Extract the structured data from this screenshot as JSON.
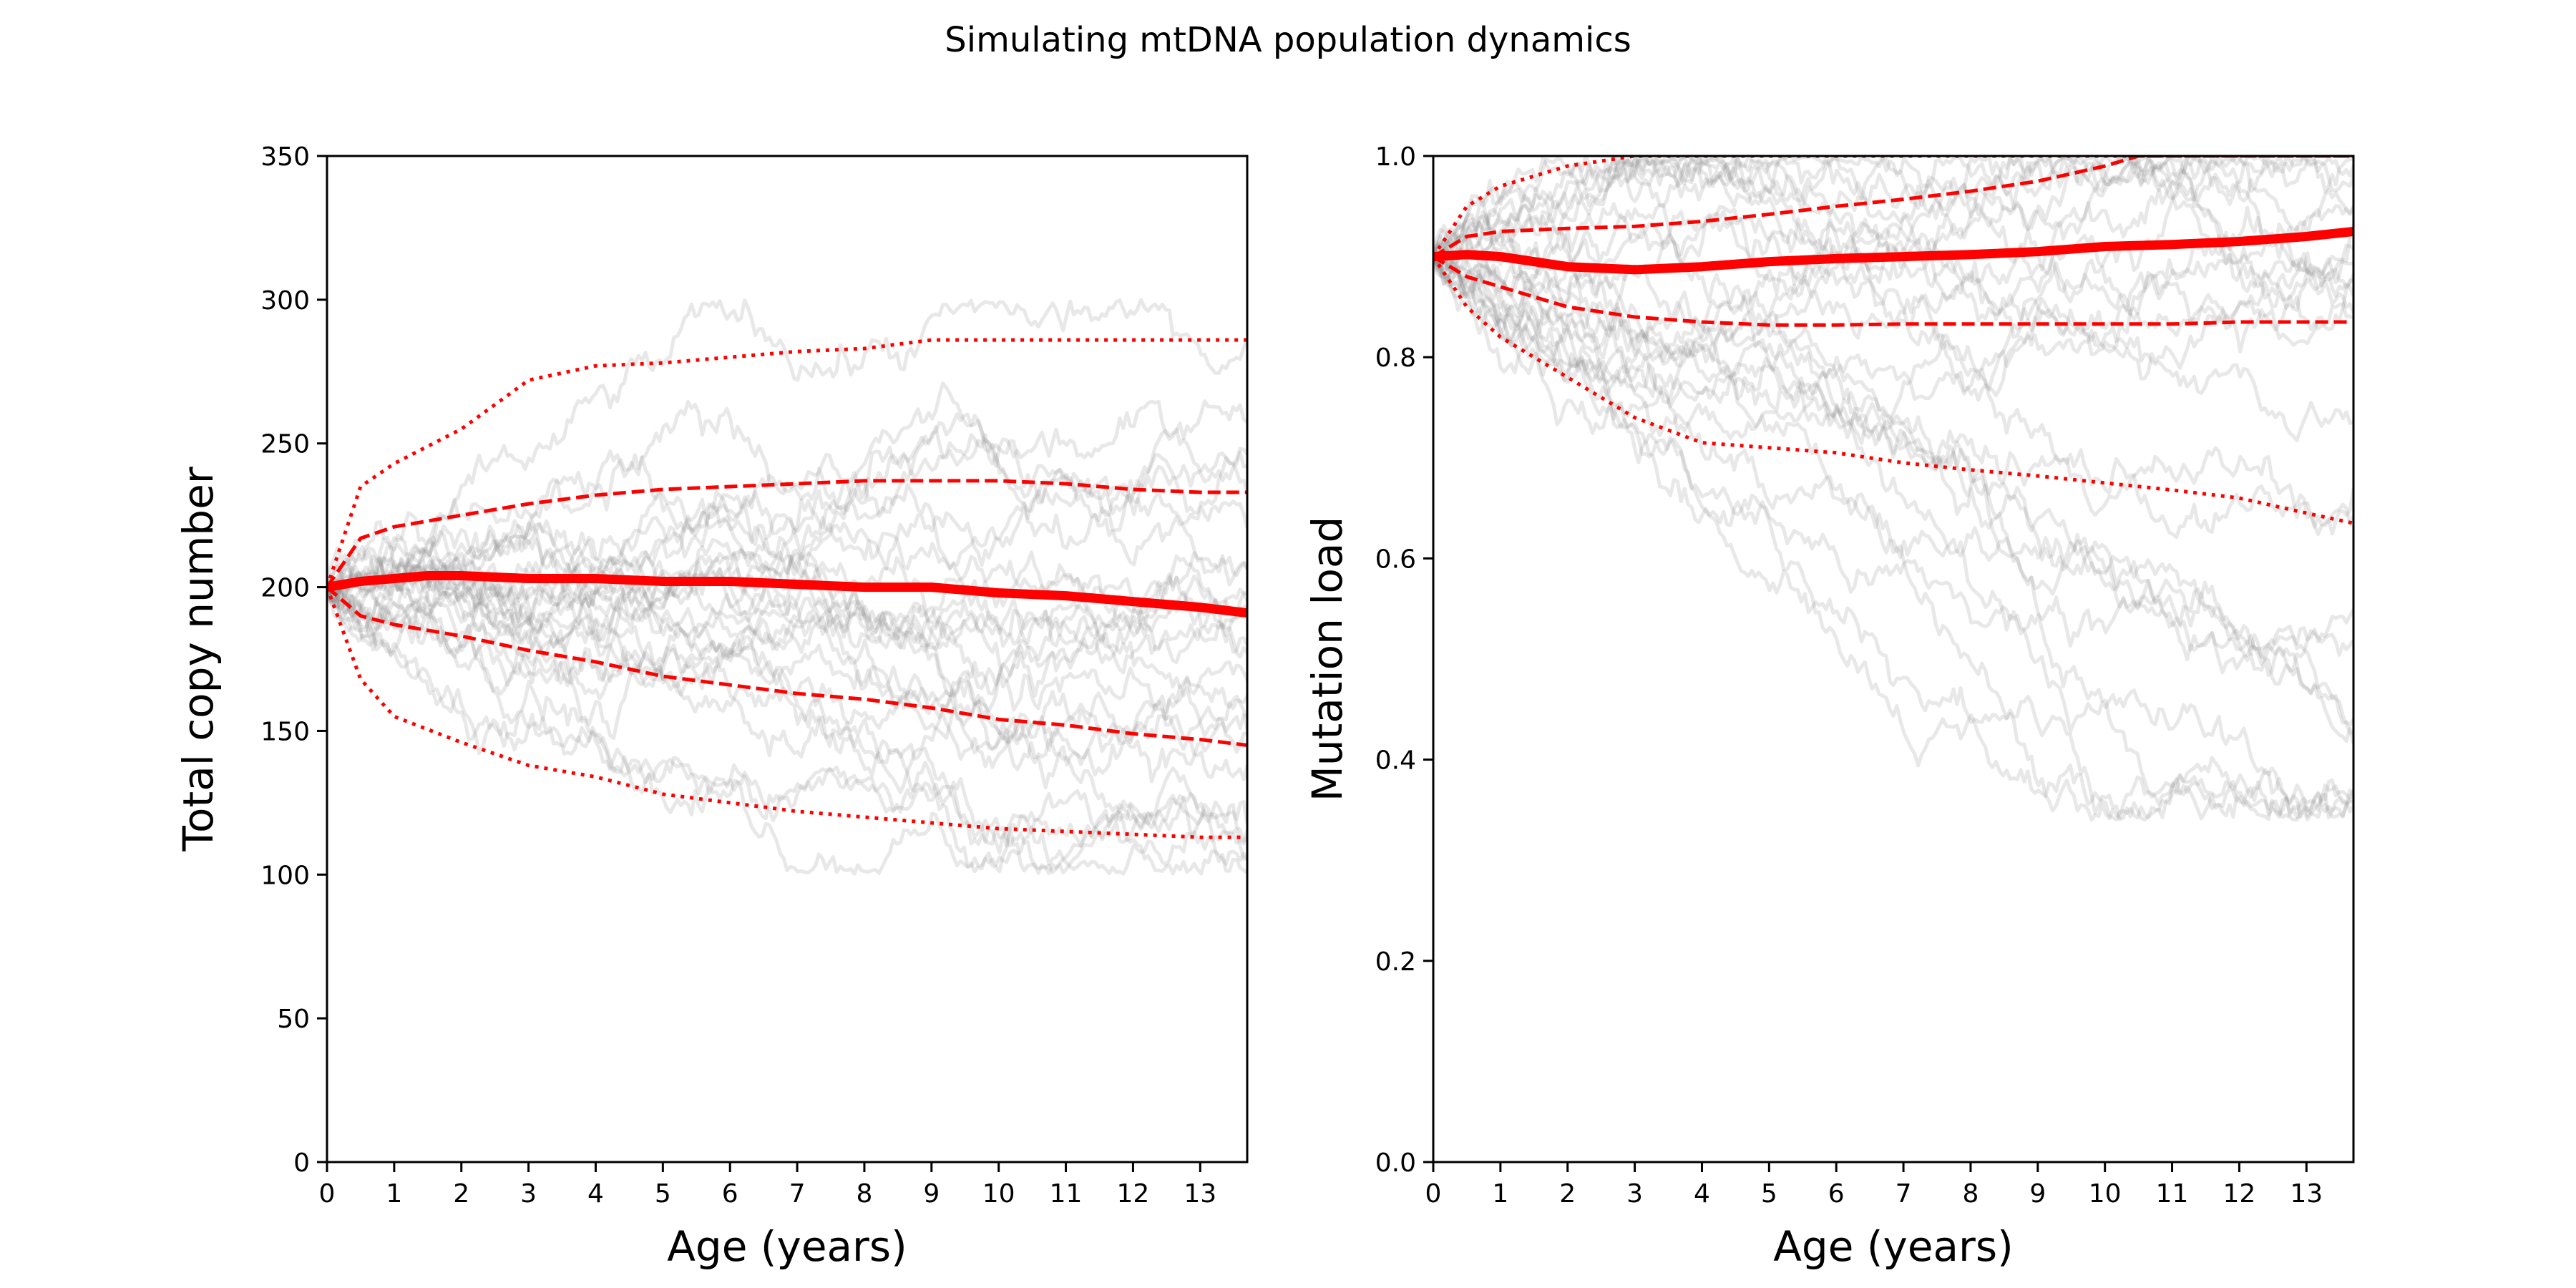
{
  "figure": {
    "title": "Simulating mtDNA population dynamics"
  },
  "colors": {
    "quantile": "#ff0000",
    "trajectory": "#808080",
    "axis": "#000000"
  },
  "chart_data": [
    {
      "type": "line",
      "xlabel": "Age (years)",
      "ylabel": "Total copy number",
      "xlim": [
        0,
        13.7
      ],
      "ylim": [
        0,
        350
      ],
      "xticks": [
        0,
        1,
        2,
        3,
        4,
        5,
        6,
        7,
        8,
        9,
        10,
        11,
        12,
        13
      ],
      "yticks": [
        0,
        50,
        100,
        150,
        200,
        250,
        300,
        350
      ],
      "series": [
        {
          "style": "dotted",
          "x": [
            0,
            0.5,
            1,
            2,
            3,
            4,
            5,
            6,
            7,
            8,
            9,
            10,
            11,
            12,
            13,
            13.7
          ],
          "y": [
            200,
            235,
            243,
            255,
            272,
            277,
            278,
            280,
            282,
            283,
            286,
            286,
            286,
            286,
            286,
            286
          ]
        },
        {
          "style": "dashed",
          "x": [
            0,
            0.5,
            1,
            2,
            3,
            4,
            5,
            6,
            7,
            8,
            9,
            10,
            11,
            12,
            13,
            13.7
          ],
          "y": [
            200,
            217,
            221,
            225,
            229,
            232,
            234,
            235,
            236,
            237,
            237,
            237,
            236,
            234,
            233,
            233
          ]
        },
        {
          "style": "solid",
          "x": [
            0,
            0.5,
            1,
            1.5,
            2,
            3,
            4,
            5,
            6,
            7,
            8,
            9,
            10,
            11,
            12,
            13,
            13.7
          ],
          "y": [
            200,
            202,
            203,
            204,
            204,
            203,
            203,
            202,
            202,
            201,
            200,
            200,
            198,
            197,
            195,
            193,
            191
          ]
        },
        {
          "style": "dashed",
          "x": [
            0,
            0.5,
            1,
            2,
            3,
            4,
            5,
            6,
            7,
            8,
            9,
            10,
            11,
            12,
            13,
            13.7
          ],
          "y": [
            200,
            190,
            187,
            183,
            178,
            174,
            169,
            166,
            163,
            161,
            158,
            154,
            152,
            149,
            147,
            145
          ]
        },
        {
          "style": "dotted",
          "x": [
            0,
            0.5,
            1,
            2,
            3,
            4,
            5,
            6,
            7,
            8,
            9,
            10,
            11,
            12,
            13,
            13.7
          ],
          "y": [
            200,
            168,
            155,
            146,
            138,
            134,
            128,
            125,
            122,
            120,
            118,
            116,
            115,
            114,
            113,
            113
          ]
        }
      ]
    },
    {
      "type": "line",
      "xlabel": "Age (years)",
      "ylabel": "Mutation load",
      "xlim": [
        0,
        13.7
      ],
      "ylim": [
        0.0,
        1.0
      ],
      "xticks": [
        0,
        1,
        2,
        3,
        4,
        5,
        6,
        7,
        8,
        9,
        10,
        11,
        12,
        13
      ],
      "yticks": [
        0.0,
        0.2,
        0.4,
        0.6,
        0.8,
        1.0
      ],
      "series": [
        {
          "style": "dotted",
          "x": [
            0,
            0.5,
            1,
            2,
            3,
            4,
            5,
            6,
            7,
            8,
            9,
            10,
            11,
            12,
            13,
            13.7
          ],
          "y": [
            0.9,
            0.95,
            0.97,
            0.99,
            1.0,
            1.0,
            1.0,
            1.0,
            1.0,
            1.0,
            1.0,
            1.0,
            1.0,
            1.0,
            1.0,
            1.0
          ]
        },
        {
          "style": "dashed",
          "x": [
            0,
            0.5,
            1,
            2,
            3,
            4,
            5,
            6,
            7,
            8,
            9,
            10,
            10.5,
            11,
            12,
            13,
            13.7
          ],
          "y": [
            0.9,
            0.92,
            0.925,
            0.928,
            0.93,
            0.935,
            0.942,
            0.95,
            0.957,
            0.965,
            0.975,
            0.99,
            1.0,
            1.0,
            1.0,
            1.0,
            1.0
          ]
        },
        {
          "style": "solid",
          "x": [
            0,
            0.5,
            1,
            2,
            3,
            4,
            5,
            6,
            7,
            8,
            9,
            10,
            11,
            12,
            13,
            13.7
          ],
          "y": [
            0.9,
            0.902,
            0.9,
            0.89,
            0.887,
            0.89,
            0.895,
            0.898,
            0.9,
            0.902,
            0.905,
            0.91,
            0.912,
            0.915,
            0.92,
            0.925
          ]
        },
        {
          "style": "dashed",
          "x": [
            0,
            0.5,
            1,
            2,
            3,
            4,
            5,
            6,
            7,
            8,
            9,
            10,
            11,
            12,
            13,
            13.7
          ],
          "y": [
            0.9,
            0.88,
            0.87,
            0.85,
            0.84,
            0.835,
            0.832,
            0.832,
            0.833,
            0.833,
            0.833,
            0.833,
            0.833,
            0.835,
            0.835,
            0.835
          ]
        },
        {
          "style": "dotted",
          "x": [
            0,
            0.5,
            1,
            2,
            3,
            4,
            5,
            6,
            7,
            8,
            9,
            10,
            11,
            12,
            13,
            13.7
          ],
          "y": [
            0.9,
            0.85,
            0.82,
            0.78,
            0.74,
            0.715,
            0.71,
            0.705,
            0.695,
            0.688,
            0.682,
            0.675,
            0.668,
            0.66,
            0.645,
            0.635
          ]
        }
      ]
    }
  ]
}
